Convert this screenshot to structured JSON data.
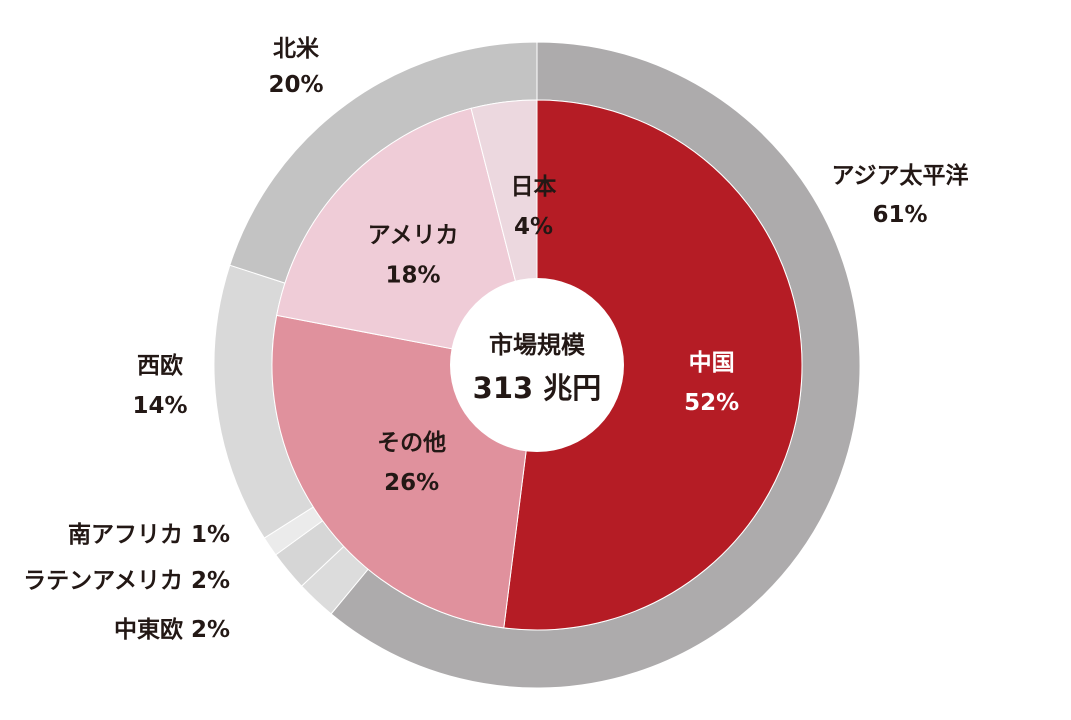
{
  "chart_data": {
    "type": "pie",
    "center": {
      "title": "市場規模",
      "value": "313 兆円"
    },
    "outer_ring": [
      {
        "label": "アジア太平洋",
        "value_text": "61%",
        "value": 61,
        "color": "#adabac"
      },
      {
        "label": "中東欧",
        "value_text": "2%",
        "value": 2,
        "color": "#dcdcdc",
        "label_text": "中東欧 2%"
      },
      {
        "label": "ラテンアメリカ",
        "value_text": "2%",
        "value": 2,
        "color": "#d6d6d6",
        "label_text": "ラテンアメリカ 2%"
      },
      {
        "label": "南アフリカ",
        "value_text": "1%",
        "value": 1,
        "color": "#ebebeb",
        "label_text": "南アフリカ 1%"
      },
      {
        "label": "西欧",
        "value_text": "14%",
        "value": 14,
        "color": "#d9d9d9"
      },
      {
        "label": "北米",
        "value_text": "20%",
        "value": 20,
        "color": "#c3c3c3"
      }
    ],
    "inner_ring": [
      {
        "label": "中国",
        "value_text": "52%",
        "value": 52,
        "color": "#b51c25",
        "text_color": "#ffffff"
      },
      {
        "label": "その他",
        "value_text": "26%",
        "value": 26,
        "color": "#e0919d",
        "text_color": "#231815"
      },
      {
        "label": "アメリカ",
        "value_text": "18%",
        "value": 18,
        "color": "#efccd7",
        "text_color": "#231815"
      },
      {
        "label": "日本",
        "value_text": "4%",
        "value": 4,
        "color": "#ecd8df",
        "text_color": "#231815"
      }
    ]
  }
}
